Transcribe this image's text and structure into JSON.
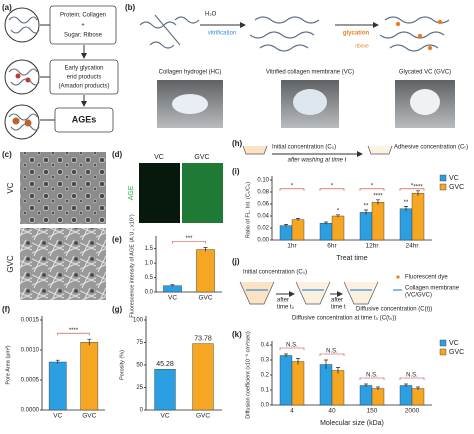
{
  "panels": {
    "a": {
      "label": "(a)",
      "box1": [
        "Protein; Collagen",
        "+",
        "Sugar; Ribose"
      ],
      "box2": [
        "Early glycation",
        "end products",
        "(Amadori products)"
      ],
      "box3": "AGEs"
    },
    "b": {
      "label": "(b)",
      "h2o": "H₂O",
      "vitrification": "vitrification",
      "glycation": "glycation",
      "ribose": "ribose",
      "captions": [
        "Collagen hydrogel (HC)",
        "Vitrified collagen membrane (VC)",
        "Glycated VC (GVC)"
      ]
    },
    "c": {
      "label": "(c)",
      "rows": [
        "VC",
        "GVC"
      ]
    },
    "d": {
      "label": "(d)",
      "columns": [
        "VC",
        "GVC"
      ],
      "row": "AGE"
    },
    "h": {
      "label": "(h)",
      "initial": "Initial concentration (C₀)",
      "wash": "after washing at time t",
      "adhesive": "Adhesive concentration (Cₜ)"
    },
    "j": {
      "label": "(j)",
      "initial": "Initial concentration (C₀)",
      "dye": "Fluorescent dye",
      "membrane": [
        "Collagen membrane",
        "(VC/GVC)"
      ],
      "after_t0": [
        "after",
        "time t₀"
      ],
      "after_t": [
        "after",
        "time t"
      ],
      "diffusive": "Diffusive concentration (C(t))",
      "diffusive_t0": "Diffusive concentration at time t₀ (C(t₀))"
    }
  },
  "chart_data": [
    {
      "type": "bar",
      "label": "(e)",
      "ylabel": "Fluorescence intensity of AGE (A.U., x10⁷)",
      "categories": [
        "VC",
        "GVC"
      ],
      "values": [
        0.22,
        1.47
      ],
      "errors": [
        0.03,
        0.07
      ],
      "colors": [
        "#2c9fe3",
        "#f5a623"
      ],
      "significance": "***",
      "ylim": [
        0,
        1.8
      ],
      "yticks": [
        {
          "value": 0,
          "label": "0.0"
        },
        0.5,
        {
          "value": 1,
          "label": "1.0"
        },
        1.5
      ]
    },
    {
      "type": "bar",
      "label": "(f)",
      "ylabel": "Pore Area (μm²)",
      "categories": [
        "VC",
        "GVC"
      ],
      "values": [
        0.0008,
        0.00113
      ],
      "errors": [
        3e-05,
        5e-05
      ],
      "colors": [
        "#2c9fe3",
        "#f5a623"
      ],
      "significance": "****",
      "ylim": [
        0,
        0.0015
      ],
      "yticks": [
        {
          "value": 0,
          "label": "0.0000"
        },
        0.0005,
        {
          "value": 0.001,
          "label": "0.0010"
        },
        0.0015
      ]
    },
    {
      "type": "bar",
      "label": "(g)",
      "ylabel": "Porosity (%)",
      "categories": [
        "VC",
        "GVC"
      ],
      "values": [
        45.28,
        73.78
      ],
      "value_labels": [
        "45.28",
        "73.78"
      ],
      "colors": [
        "#2c9fe3",
        "#f5a623"
      ],
      "ylim": [
        0,
        100
      ],
      "yticks": [
        0,
        25,
        50,
        75,
        100
      ]
    },
    {
      "type": "bar",
      "label": "(i)",
      "ylabel": "Ratio of FL. Int. (Cₜ/C₀)",
      "xlabel": "Treat time",
      "categories": [
        "1hr",
        "6hr",
        "12hr",
        "24hr"
      ],
      "series": [
        {
          "name": "VC",
          "color": "#2c9fe3",
          "values": [
            0.024,
            0.028,
            0.046,
            0.052
          ],
          "errors": [
            0.002,
            0.002,
            0.004,
            0.004
          ],
          "marks": [
            null,
            null,
            "**",
            "**"
          ]
        },
        {
          "name": "GVC",
          "color": "#f5a623",
          "values": [
            0.034,
            0.04,
            0.063,
            0.078
          ],
          "errors": [
            0.002,
            0.002,
            0.004,
            0.004
          ],
          "marks": [
            null,
            "*",
            "****",
            "****"
          ]
        }
      ],
      "brackets": [
        "*",
        "*",
        "*",
        "*"
      ],
      "ylim": [
        0,
        0.1
      ],
      "yticks": [
        {
          "value": 0,
          "label": "0.00"
        },
        {
          "value": 0.02,
          "label": "0.02"
        },
        {
          "value": 0.04,
          "label": "0.04"
        },
        {
          "value": 0.06,
          "label": "0.06"
        },
        {
          "value": 0.08,
          "label": "0.08"
        },
        {
          "value": 0.1,
          "label": "0.10"
        }
      ]
    },
    {
      "type": "bar",
      "label": "(k)",
      "ylabel": "Diffusion coefficient (x10⁻⁶ cm²/sec)",
      "xlabel": "Molecular size (kDa)",
      "categories": [
        "4",
        "40",
        "150",
        "2000"
      ],
      "series": [
        {
          "name": "VC",
          "color": "#2c9fe3",
          "values": [
            0.33,
            0.27,
            0.13,
            0.13
          ],
          "errors": [
            0.01,
            0.03,
            0.01,
            0.01
          ]
        },
        {
          "name": "GVC",
          "color": "#f5a623",
          "values": [
            0.29,
            0.23,
            0.11,
            0.11
          ],
          "errors": [
            0.02,
            0.02,
            0.01,
            0.01
          ]
        }
      ],
      "brackets": [
        "N.S.",
        "N.S.",
        "N.S.",
        "N.S."
      ],
      "ylim": [
        0,
        0.4
      ],
      "yticks": [
        {
          "value": 0,
          "label": "0.0"
        },
        0.1,
        0.2,
        0.3,
        0.4
      ]
    }
  ]
}
